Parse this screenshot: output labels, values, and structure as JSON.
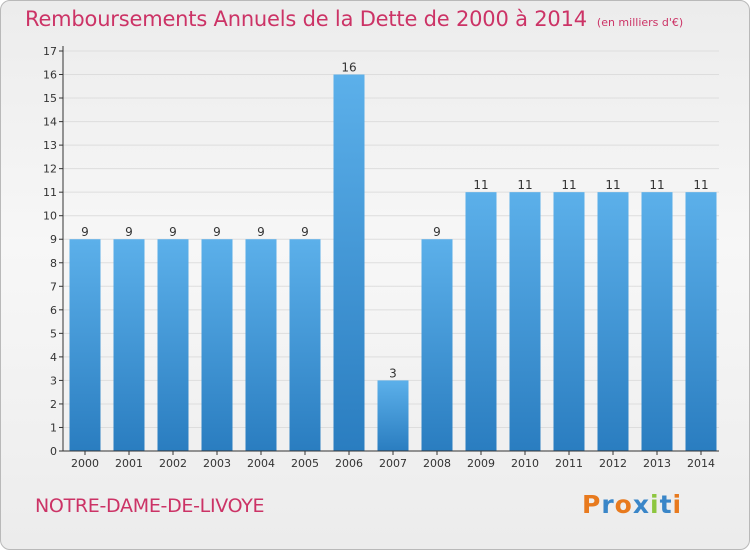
{
  "header": {
    "title": "Remboursements Annuels de la Dette de 2000 à 2014",
    "unit": "(en milliers d'€)"
  },
  "footer": {
    "commune": "NOTRE-DAME-DE-LIVOYE",
    "logo": {
      "text": "Proxiti",
      "letters": [
        "P",
        "r",
        "o",
        "x",
        "i",
        "t",
        "i"
      ],
      "colors": [
        "#e87a1e",
        "#3a86c8",
        "#e87a1e",
        "#3a86c8",
        "#8dc63f",
        "#3a86c8",
        "#e87a1e"
      ]
    }
  },
  "colors": {
    "title": "#cc3366",
    "bar_light": "#5cb0ea",
    "bar_dark": "#2a7dc0",
    "grid": "#dddddd",
    "axis": "#333333"
  },
  "chart_data": {
    "type": "bar",
    "title": "Remboursements Annuels de la Dette de 2000 à 2014",
    "xlabel": "",
    "ylabel": "",
    "categories": [
      "2000",
      "2001",
      "2002",
      "2003",
      "2004",
      "2005",
      "2006",
      "2007",
      "2008",
      "2009",
      "2010",
      "2011",
      "2012",
      "2013",
      "2014"
    ],
    "values": [
      9,
      9,
      9,
      9,
      9,
      9,
      16,
      3,
      9,
      11,
      11,
      11,
      11,
      11,
      11
    ],
    "ylim": [
      0,
      17
    ],
    "yticks": [
      0,
      1,
      2,
      3,
      4,
      5,
      6,
      7,
      8,
      9,
      10,
      11,
      12,
      13,
      14,
      15,
      16,
      17
    ],
    "grid": true,
    "data_labels": true
  }
}
